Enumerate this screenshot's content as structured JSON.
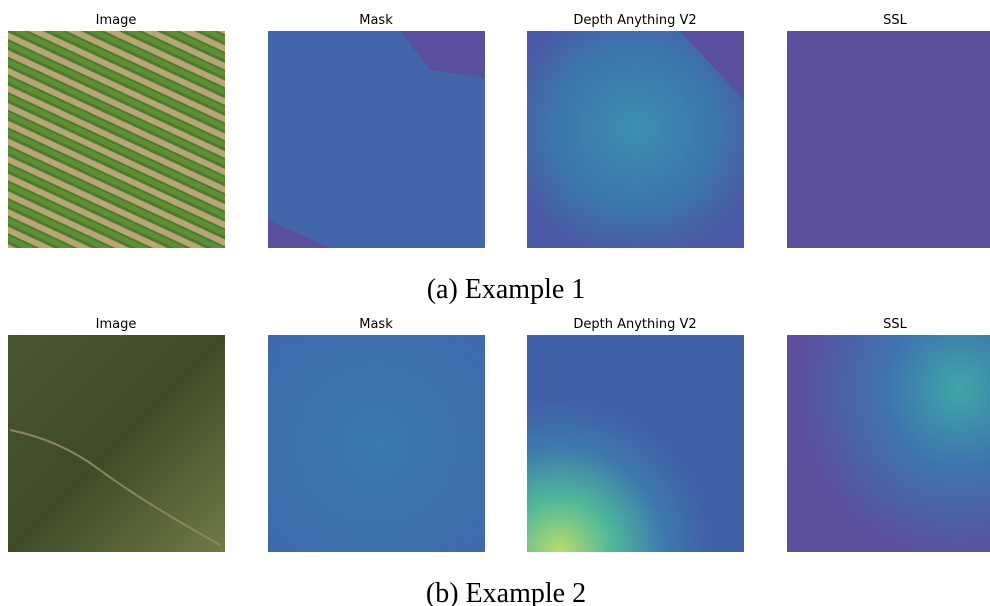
{
  "rows": [
    {
      "panels": [
        {
          "title": "Image"
        },
        {
          "title": "Mask"
        },
        {
          "title": "Depth Anything V2"
        },
        {
          "title": "SSL"
        }
      ],
      "caption": "(a) Example 1"
    },
    {
      "panels": [
        {
          "title": "Image"
        },
        {
          "title": "Mask"
        },
        {
          "title": "Depth Anything V2"
        },
        {
          "title": "SSL"
        }
      ],
      "caption": "(b) Example 2"
    }
  ]
}
